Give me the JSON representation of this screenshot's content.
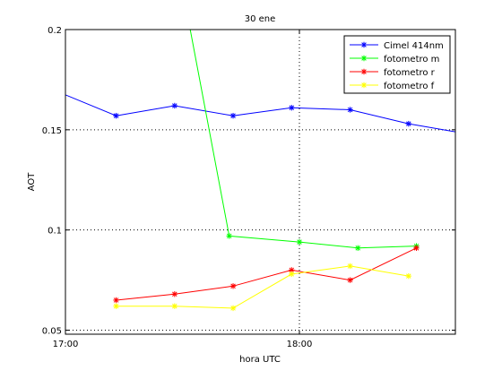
{
  "chart_data": {
    "type": "line",
    "title": "30 ene",
    "xlabel": "hora UTC",
    "ylabel": "AOT",
    "xlim": [
      0,
      100
    ],
    "ylim": [
      0.048,
      0.2
    ],
    "x_ticks": [
      {
        "pos": 0,
        "label": "17:00"
      },
      {
        "pos": 60,
        "label": "18:00"
      }
    ],
    "y_ticks": [
      {
        "value": 0.05,
        "label": "0.05"
      },
      {
        "value": 0.1,
        "label": "0.1"
      },
      {
        "value": 0.15,
        "label": "0.15"
      },
      {
        "value": 0.2,
        "label": "0.2"
      }
    ],
    "grid": true,
    "grid_style": "dotted",
    "legend_position": "top-right",
    "series": [
      {
        "name": "Cimel 414nm",
        "color": "#0000ff",
        "marker": "*",
        "x": [
          -2,
          13,
          28,
          43,
          58,
          73,
          88,
          100
        ],
        "y": [
          0.169,
          0.157,
          0.162,
          0.157,
          0.161,
          0.16,
          0.153,
          0.149
        ],
        "markers": [
          false,
          true,
          true,
          true,
          true,
          true,
          true,
          false
        ]
      },
      {
        "name": "fotometro m",
        "color": "#00ff00",
        "marker": "*",
        "x": [
          32,
          42,
          60,
          75,
          90
        ],
        "y": [
          0.2,
          0.097,
          0.094,
          0.091,
          0.092
        ],
        "markers": [
          false,
          true,
          true,
          true,
          true
        ]
      },
      {
        "name": "fotometro r",
        "color": "#ff0000",
        "marker": "*",
        "x": [
          13,
          28,
          43,
          58,
          73,
          90
        ],
        "y": [
          0.065,
          0.068,
          0.072,
          0.08,
          0.075,
          0.091
        ],
        "markers": [
          true,
          true,
          true,
          true,
          true,
          true
        ]
      },
      {
        "name": "fotometro f",
        "color": "#ffff00",
        "marker": "*",
        "x": [
          13,
          28,
          43,
          58,
          73,
          88
        ],
        "y": [
          0.062,
          0.062,
          0.061,
          0.078,
          0.082,
          0.077
        ],
        "markers": [
          true,
          true,
          true,
          true,
          true,
          true
        ]
      }
    ]
  }
}
